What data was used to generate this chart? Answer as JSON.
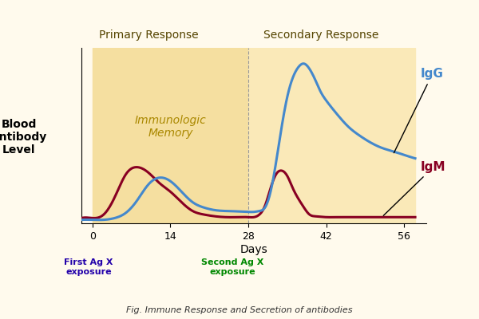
{
  "title_primary": "Primary Response",
  "title_secondary": "Secondary Response",
  "ylabel": "Blood\nAntibody\nLevel",
  "xlabel": "Days",
  "xticks": [
    0,
    14,
    28,
    42,
    56
  ],
  "ylim": [
    0,
    10
  ],
  "xlim": [
    -2,
    60
  ],
  "fig_caption": "Fig. Immune Response and Secretion of antibodies",
  "immunologic_memory_text": "Immunologic\nMemory",
  "IgG_label": "IgG",
  "IgM_label": "IgM",
  "first_exposure_label": "First Ag X\nexposure",
  "second_exposure_label": "Second Ag X\nexposure",
  "bg_color": "#FFFAED",
  "primary_bg": "#F5DFA0",
  "secondary_bg": "#FAE9B8",
  "IgG_color": "#4488CC",
  "IgM_color": "#880022",
  "arrow1_color": "#2200AA",
  "arrow2_color": "#008800",
  "primary_region_end": 28,
  "first_exposure_x": 0,
  "second_exposure_x": 28
}
